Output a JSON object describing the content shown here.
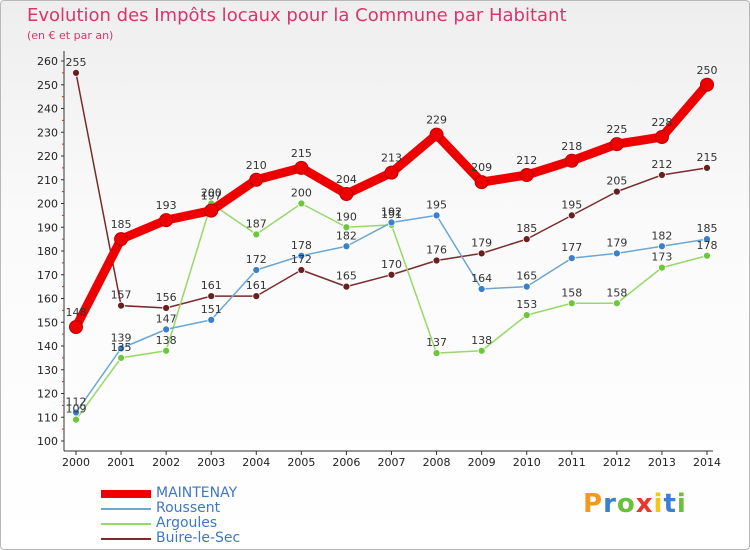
{
  "title": "Evolution des Impôts locaux pour la Commune par Habitant",
  "subtitle": "(en € et par an)",
  "logo": {
    "letters": [
      "P",
      "r",
      "o",
      "x",
      "i",
      "t",
      "i"
    ],
    "colors": [
      "#f39a1e",
      "#3a7fd0",
      "#6bbf3a",
      "#e8362b",
      "#f5c518",
      "#3a7fd0",
      "#6bbf3a"
    ]
  },
  "chart_data": {
    "type": "line",
    "x": [
      "2000",
      "2001",
      "2002",
      "2003",
      "2004",
      "2005",
      "2006",
      "2007",
      "2008",
      "2009",
      "2010",
      "2011",
      "2012",
      "2013",
      "2014"
    ],
    "ylim": [
      100,
      260
    ],
    "yticks": [
      "100",
      "110",
      "120",
      "130",
      "140",
      "150",
      "160",
      "170",
      "180",
      "190",
      "200",
      "210",
      "220",
      "230",
      "240",
      "250",
      "260"
    ],
    "grid": false,
    "legend": "bottom-left",
    "series": [
      {
        "name": "MAINTENAY",
        "color": "#ee0000",
        "values": [
          148,
          185,
          193,
          197,
          210,
          215,
          204,
          213,
          229,
          209,
          212,
          218,
          225,
          228,
          250
        ]
      },
      {
        "name": "Roussent",
        "color": "#6aa6d6",
        "values": [
          112,
          139,
          147,
          151,
          172,
          178,
          182,
          192,
          195,
          164,
          165,
          177,
          179,
          182,
          185
        ]
      },
      {
        "name": "Argoules",
        "color": "#97d86a",
        "values": [
          109,
          135,
          138,
          200,
          187,
          200,
          190,
          191,
          137,
          138,
          153,
          158,
          158,
          173,
          178
        ]
      },
      {
        "name": "Buire-le-Sec",
        "color": "#7a2b2b",
        "values": [
          255,
          157,
          156,
          161,
          161,
          172,
          165,
          170,
          176,
          179,
          185,
          195,
          205,
          212,
          215
        ]
      }
    ]
  }
}
